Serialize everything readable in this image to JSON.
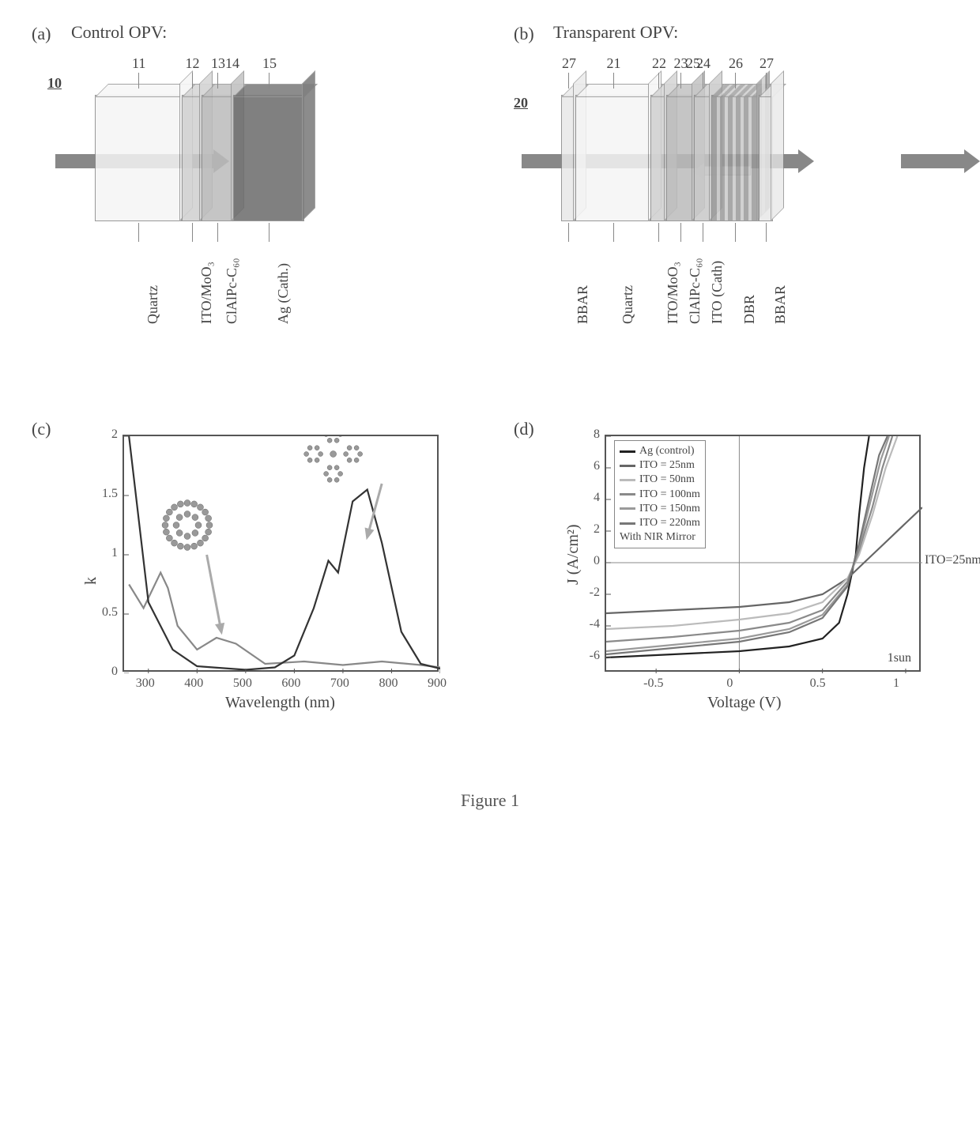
{
  "figure_caption": "Figure 1",
  "panels": {
    "a": {
      "label": "(a)",
      "title": "Control OPV:",
      "ref": "10",
      "layers": [
        {
          "name": "Quartz",
          "width": 110,
          "color": "#f5f5f5",
          "num": "11"
        },
        {
          "name": "ITO/MoO₃",
          "width": 25,
          "color": "#d0d0d0",
          "num": "12"
        },
        {
          "name": "ClAlPc-C₆₀",
          "width": 40,
          "color": "#bcbcbc",
          "num": "13"
        },
        {
          "name": "Ag (Cath.)",
          "width": 90,
          "color": "#6a6a6a",
          "num": "15",
          "extra_num": "14"
        }
      ]
    },
    "b": {
      "label": "(b)",
      "title": "Transparent OPV:",
      "ref": "20",
      "layers": [
        {
          "name": "BBAR",
          "width": 18,
          "color": "#e8e8e8",
          "num": "27"
        },
        {
          "name": "Quartz",
          "width": 95,
          "color": "#f5f5f5",
          "num": "21"
        },
        {
          "name": "ITO/MoO₃",
          "width": 20,
          "color": "#d0d0d0",
          "num": "22"
        },
        {
          "name": "ClAlPc-C₆₀",
          "width": 35,
          "color": "#bcbcbc",
          "num": "23"
        },
        {
          "name": "ITO (Cath)",
          "width": 22,
          "color": "#c8c8c8",
          "num": "24",
          "extra_num": "25"
        },
        {
          "name": "DBR",
          "width": 60,
          "color": "#999999",
          "num": "26",
          "striped": true
        },
        {
          "name": "BBAR",
          "width": 18,
          "color": "#e8e8e8",
          "num": "27"
        }
      ],
      "brace_labels": [
        "27",
        "21",
        "22",
        "23",
        "24",
        "25",
        "26",
        "27"
      ]
    },
    "c": {
      "label": "(c)",
      "type": "line",
      "xlim": [
        250,
        900
      ],
      "ylim": [
        0,
        2.0
      ],
      "xticks": [
        300,
        400,
        500,
        600,
        700,
        800,
        900
      ],
      "yticks": [
        0.0,
        0.5,
        1.0,
        1.5,
        2.0
      ],
      "xlabel": "Wavelength (nm)",
      "ylabel": "k",
      "plot_bg": "#ffffff",
      "series": [
        {
          "name": "C60",
          "color": "#888888",
          "width": 2.5,
          "points": [
            [
              260,
              0.75
            ],
            [
              290,
              0.55
            ],
            [
              325,
              0.85
            ],
            [
              340,
              0.72
            ],
            [
              360,
              0.4
            ],
            [
              400,
              0.2
            ],
            [
              440,
              0.3
            ],
            [
              480,
              0.25
            ],
            [
              540,
              0.08
            ],
            [
              620,
              0.1
            ],
            [
              700,
              0.07
            ],
            [
              780,
              0.1
            ],
            [
              860,
              0.07
            ],
            [
              900,
              0.05
            ]
          ]
        },
        {
          "name": "ClAlPc",
          "color": "#333333",
          "width": 2.5,
          "points": [
            [
              260,
              2.0
            ],
            [
              300,
              0.6
            ],
            [
              350,
              0.2
            ],
            [
              400,
              0.06
            ],
            [
              500,
              0.03
            ],
            [
              560,
              0.05
            ],
            [
              600,
              0.15
            ],
            [
              640,
              0.55
            ],
            [
              670,
              0.95
            ],
            [
              690,
              0.85
            ],
            [
              720,
              1.45
            ],
            [
              750,
              1.55
            ],
            [
              780,
              1.1
            ],
            [
              820,
              0.35
            ],
            [
              860,
              0.08
            ],
            [
              900,
              0.04
            ]
          ]
        }
      ],
      "annotations": {
        "c60_pointer": {
          "from": [
            420,
            1.0
          ],
          "to": [
            450,
            0.35
          ]
        },
        "pc_pointer": {
          "from": [
            780,
            1.6
          ],
          "to": [
            750,
            1.15
          ]
        }
      }
    },
    "d": {
      "label": "(d)",
      "type": "line",
      "xlim": [
        -0.8,
        1.1
      ],
      "ylim": [
        -7,
        8
      ],
      "xticks": [
        -0.5,
        0.0,
        0.5,
        1.0
      ],
      "yticks": [
        -6,
        -4,
        -2,
        0,
        2,
        4,
        6,
        8
      ],
      "xlabel": "Voltage (V)",
      "ylabel": "J (A/cm²)",
      "plot_bg": "#ffffff",
      "note": "1sun",
      "annot_right_top": "",
      "annot_right_mid": "ITO=25nm",
      "legend_title": "With NIR Mirror",
      "legend": [
        {
          "label": "Ag (control)",
          "color": "#222222"
        },
        {
          "label": "ITO = 25nm",
          "color": "#666666"
        },
        {
          "label": "ITO = 50nm",
          "color": "#bbbbbb"
        },
        {
          "label": "ITO = 100nm",
          "color": "#8a8a8a"
        },
        {
          "label": "ITO = 150nm",
          "color": "#9a9a9a"
        },
        {
          "label": "ITO = 220nm",
          "color": "#777777"
        }
      ],
      "series": [
        {
          "color": "#222222",
          "width": 3,
          "points": [
            [
              -0.8,
              -6.0
            ],
            [
              -0.4,
              -5.8
            ],
            [
              0.0,
              -5.6
            ],
            [
              0.3,
              -5.3
            ],
            [
              0.5,
              -4.8
            ],
            [
              0.6,
              -3.8
            ],
            [
              0.65,
              -2.0
            ],
            [
              0.7,
              0.5
            ],
            [
              0.72,
              3.0
            ],
            [
              0.75,
              6.0
            ],
            [
              0.78,
              8.0
            ]
          ]
        },
        {
          "color": "#666666",
          "width": 2,
          "points": [
            [
              -0.8,
              -3.2
            ],
            [
              -0.4,
              -3.0
            ],
            [
              0.0,
              -2.8
            ],
            [
              0.3,
              -2.5
            ],
            [
              0.5,
              -2.0
            ],
            [
              0.65,
              -1.0
            ],
            [
              0.75,
              0.0
            ],
            [
              0.85,
              1.0
            ],
            [
              1.0,
              2.5
            ],
            [
              1.1,
              3.5
            ]
          ]
        },
        {
          "color": "#bbbbbb",
          "width": 2,
          "points": [
            [
              -0.8,
              -4.2
            ],
            [
              -0.4,
              -4.0
            ],
            [
              0.0,
              -3.6
            ],
            [
              0.3,
              -3.2
            ],
            [
              0.5,
              -2.5
            ],
            [
              0.65,
              -1.0
            ],
            [
              0.72,
              0.5
            ],
            [
              0.8,
              3.0
            ],
            [
              0.88,
              6.0
            ],
            [
              0.95,
              8.0
            ]
          ]
        },
        {
          "color": "#8a8a8a",
          "width": 2,
          "points": [
            [
              -0.8,
              -5.0
            ],
            [
              -0.4,
              -4.7
            ],
            [
              0.0,
              -4.3
            ],
            [
              0.3,
              -3.8
            ],
            [
              0.5,
              -3.0
            ],
            [
              0.65,
              -1.2
            ],
            [
              0.72,
              0.8
            ],
            [
              0.8,
              3.5
            ],
            [
              0.86,
              6.0
            ],
            [
              0.92,
              8.0
            ]
          ]
        },
        {
          "color": "#9a9a9a",
          "width": 2,
          "points": [
            [
              -0.8,
              -5.6
            ],
            [
              -0.4,
              -5.2
            ],
            [
              0.0,
              -4.8
            ],
            [
              0.3,
              -4.2
            ],
            [
              0.5,
              -3.3
            ],
            [
              0.65,
              -1.4
            ],
            [
              0.72,
              1.0
            ],
            [
              0.78,
              3.5
            ],
            [
              0.85,
              6.5
            ],
            [
              0.9,
              8.0
            ]
          ]
        },
        {
          "color": "#777777",
          "width": 2,
          "points": [
            [
              -0.8,
              -5.8
            ],
            [
              -0.4,
              -5.4
            ],
            [
              0.0,
              -5.0
            ],
            [
              0.3,
              -4.4
            ],
            [
              0.5,
              -3.5
            ],
            [
              0.65,
              -1.5
            ],
            [
              0.72,
              1.2
            ],
            [
              0.78,
              4.0
            ],
            [
              0.84,
              6.8
            ],
            [
              0.89,
              8.0
            ]
          ]
        }
      ]
    }
  }
}
